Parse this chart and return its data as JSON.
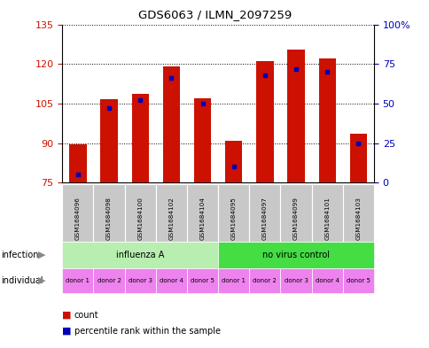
{
  "title": "GDS6063 / ILMN_2097259",
  "samples": [
    "GSM1684096",
    "GSM1684098",
    "GSM1684100",
    "GSM1684102",
    "GSM1684104",
    "GSM1684095",
    "GSM1684097",
    "GSM1684099",
    "GSM1684101",
    "GSM1684103"
  ],
  "counts": [
    89.5,
    106.5,
    108.5,
    119.0,
    107.0,
    91.0,
    121.0,
    125.5,
    122.0,
    93.5
  ],
  "percentile_ranks": [
    5,
    47,
    52,
    66,
    50,
    10,
    68,
    72,
    70,
    25
  ],
  "y_min": 75,
  "y_max": 135,
  "y_ticks": [
    75,
    90,
    105,
    120,
    135
  ],
  "y2_ticks": [
    0,
    25,
    50,
    75,
    100
  ],
  "bar_color": "#CC1100",
  "marker_color": "#0000BB",
  "infection_groups": [
    {
      "label": "influenza A",
      "start": 0,
      "end": 5,
      "color": "#B8EEB0"
    },
    {
      "label": "no virus control",
      "start": 5,
      "end": 10,
      "color": "#44DD44"
    }
  ],
  "individual_labels": [
    "donor 1",
    "donor 2",
    "donor 3",
    "donor 4",
    "donor 5",
    "donor 1",
    "donor 2",
    "donor 3",
    "donor 4",
    "donor 5"
  ],
  "individual_color": "#EE82EE",
  "sample_label_bg": "#C8C8C8",
  "infection_row_label": "infection",
  "individual_row_label": "individual"
}
